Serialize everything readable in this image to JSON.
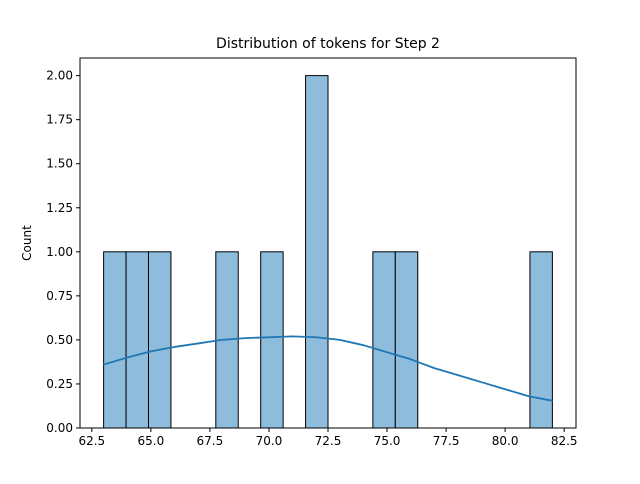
{
  "chart_data": {
    "type": "bar",
    "title": "Distribution of tokens for Step 2",
    "xlabel": "",
    "ylabel": "Count",
    "xlim": [
      62.0,
      83.0
    ],
    "ylim": [
      0.0,
      2.1
    ],
    "x_ticks": [
      62.5,
      65.0,
      67.5,
      70.0,
      72.5,
      75.0,
      77.5,
      80.0,
      82.5
    ],
    "x_tick_labels": [
      "62.5",
      "65.0",
      "67.5",
      "70.0",
      "72.5",
      "75.0",
      "77.5",
      "80.0",
      "82.5"
    ],
    "y_ticks": [
      0.0,
      0.25,
      0.5,
      0.75,
      1.0,
      1.25,
      1.5,
      1.75,
      2.0
    ],
    "y_tick_labels": [
      "0.00",
      "0.25",
      "0.50",
      "0.75",
      "1.00",
      "1.25",
      "1.50",
      "1.75",
      "2.00"
    ],
    "bins": [
      {
        "x0": 63.0,
        "x1": 63.95,
        "count": 1
      },
      {
        "x0": 63.95,
        "x1": 64.9,
        "count": 1
      },
      {
        "x0": 64.9,
        "x1": 65.85,
        "count": 1
      },
      {
        "x0": 67.75,
        "x1": 68.7,
        "count": 1
      },
      {
        "x0": 69.65,
        "x1": 70.6,
        "count": 1
      },
      {
        "x0": 71.55,
        "x1": 72.5,
        "count": 2
      },
      {
        "x0": 74.4,
        "x1": 75.35,
        "count": 1
      },
      {
        "x0": 75.35,
        "x1": 76.3,
        "count": 1
      },
      {
        "x0": 81.05,
        "x1": 82.0,
        "count": 1
      }
    ],
    "kde": {
      "x": [
        63.0,
        64.0,
        65.0,
        66.0,
        67.0,
        68.0,
        69.0,
        70.0,
        71.0,
        72.0,
        73.0,
        74.0,
        75.0,
        76.0,
        77.0,
        78.0,
        79.0,
        80.0,
        81.0,
        82.0
      ],
      "y": [
        0.36,
        0.4,
        0.435,
        0.46,
        0.48,
        0.5,
        0.51,
        0.515,
        0.52,
        0.515,
        0.5,
        0.47,
        0.43,
        0.39,
        0.34,
        0.3,
        0.26,
        0.22,
        0.18,
        0.155
      ]
    },
    "grid": false,
    "colors": {
      "bar_fill": "#8ebcdc",
      "bar_edge": "#000000",
      "kde_line": "#1f77b4",
      "axes": "#000000",
      "background": "#ffffff"
    }
  }
}
